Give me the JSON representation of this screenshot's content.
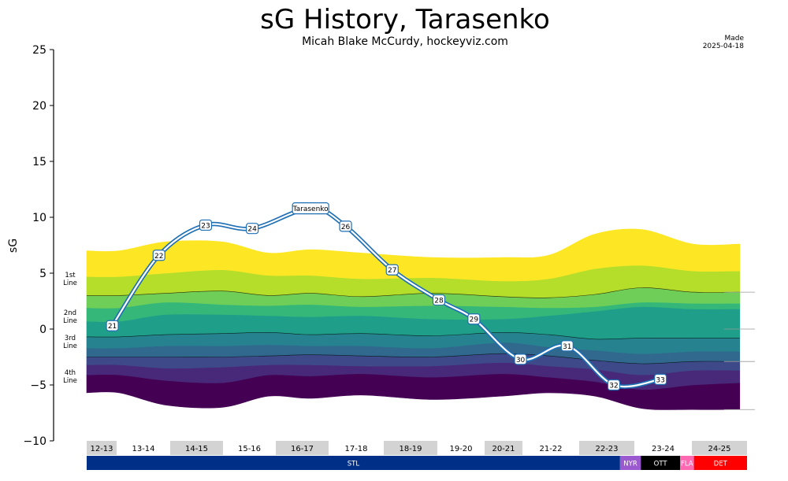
{
  "chart_data": {
    "type": "area",
    "title": "sG History, Tarasenko",
    "subtitle": "Micah Blake McCurdy, hockeyviz.com",
    "made_label": "Made",
    "made_date": "2025-04-18",
    "ylabel": "sG",
    "ylim": [
      -10,
      25
    ],
    "yticks": [
      -10,
      -5,
      0,
      5,
      10,
      15,
      20,
      25
    ],
    "line_labels": [
      "1st\nLine",
      "2nd\nLine",
      "3rd\nLine",
      "4th\nLine"
    ],
    "seasons": [
      "12-13",
      "13-14",
      "14-15",
      "15-16",
      "16-17",
      "17-18",
      "18-19",
      "19-20",
      "20-21",
      "21-22",
      "22-23",
      "23-24",
      "24-25"
    ],
    "teams": [
      {
        "name": "STL",
        "from": 0,
        "to": 11.55,
        "color": "#002F87"
      },
      {
        "name": "NYR",
        "from": 11.55,
        "to": 12.0,
        "color": "#9B59D0"
      },
      {
        "name": "OTT",
        "from": 12.0,
        "to": 12.85,
        "color": "#000000"
      },
      {
        "name": "FLA",
        "from": 12.85,
        "to": 13.15,
        "color": "#FF69B4"
      },
      {
        "name": "DET",
        "from": 13.15,
        "to": 14.3,
        "color": "#FF0000"
      }
    ],
    "band_colors": [
      "#440154",
      "#482878",
      "#3E4989",
      "#31688E",
      "#26828E",
      "#1F9E89",
      "#35B779",
      "#6ECE58",
      "#B5DE2B",
      "#FDE725"
    ],
    "band_x": [
      0,
      0.7,
      1.7,
      2.9,
      3.9,
      4.8,
      5.9,
      7.4,
      8.9,
      9.9,
      10.9,
      11.9,
      13.0,
      14.0
    ],
    "band_boundaries": [
      [
        -5.7,
        -5.7,
        -6.8,
        -7.0,
        -6.0,
        -6.2,
        -5.9,
        -6.3,
        -6.0,
        -5.7,
        -6.0,
        -7.1,
        -7.2,
        -7.2
      ],
      [
        -4.1,
        -4.1,
        -4.6,
        -4.8,
        -4.1,
        -4.2,
        -4.0,
        -4.3,
        -4.0,
        -4.3,
        -4.7,
        -5.4,
        -5.0,
        -4.8
      ],
      [
        -3.2,
        -3.2,
        -3.5,
        -3.4,
        -3.2,
        -3.2,
        -3.3,
        -3.3,
        -3.0,
        -3.3,
        -3.6,
        -4.1,
        -3.7,
        -3.7
      ],
      [
        -2.5,
        -2.5,
        -2.5,
        -2.5,
        -2.4,
        -2.3,
        -2.4,
        -2.5,
        -2.2,
        -2.4,
        -2.8,
        -3.1,
        -2.9,
        -2.9
      ],
      [
        -1.7,
        -1.7,
        -1.5,
        -1.5,
        -1.4,
        -1.5,
        -1.5,
        -1.7,
        -1.2,
        -1.6,
        -1.9,
        -2.2,
        -2.0,
        -2.0
      ],
      [
        -0.7,
        -0.7,
        -0.5,
        -0.4,
        -0.3,
        -0.5,
        -0.4,
        -0.6,
        -0.3,
        -0.5,
        -0.9,
        -0.8,
        -0.8,
        -0.8
      ],
      [
        0.7,
        0.7,
        1.3,
        1.3,
        1.2,
        1.1,
        1.2,
        0.9,
        0.9,
        1.2,
        1.6,
        2.0,
        1.8,
        1.8
      ],
      [
        1.9,
        1.9,
        2.4,
        2.2,
        2.1,
        2.2,
        2.0,
        2.1,
        2.0,
        1.9,
        2.0,
        2.4,
        2.3,
        2.3
      ],
      [
        3.0,
        3.0,
        3.2,
        3.4,
        3.0,
        3.2,
        2.9,
        3.2,
        2.9,
        2.8,
        3.1,
        3.7,
        3.3,
        3.3
      ],
      [
        4.7,
        4.7,
        5.0,
        5.3,
        4.8,
        4.8,
        4.5,
        4.6,
        4.3,
        4.5,
        5.4,
        5.7,
        5.2,
        5.2
      ],
      [
        7.0,
        7.0,
        7.8,
        7.8,
        6.8,
        7.1,
        6.8,
        6.4,
        6.4,
        6.6,
        8.5,
        8.9,
        7.6,
        7.6
      ]
    ],
    "thin_boundary_indices": [
      3,
      5,
      8
    ],
    "reference_levels": [
      -7.2,
      -2.9,
      0,
      3.3
    ],
    "player": {
      "name": "Tarasenko",
      "label_x": 4.8,
      "label_y": 10.8,
      "points": [
        {
          "age": "21",
          "x": 0.55,
          "y": 0.3
        },
        {
          "age": "22",
          "x": 1.55,
          "y": 6.6
        },
        {
          "age": "23",
          "x": 2.55,
          "y": 9.3
        },
        {
          "age": "24",
          "x": 3.55,
          "y": 9.0
        },
        {
          "x": 4.8,
          "y": 10.8
        },
        {
          "age": "26",
          "x": 5.55,
          "y": 9.2
        },
        {
          "age": "27",
          "x": 6.55,
          "y": 5.3
        },
        {
          "age": "28",
          "x": 7.55,
          "y": 2.6
        },
        {
          "age": "29",
          "x": 8.3,
          "y": 0.9
        },
        {
          "age": "30",
          "x": 9.3,
          "y": -2.7
        },
        {
          "age": "31",
          "x": 10.3,
          "y": -1.5
        },
        {
          "age": "32",
          "x": 11.3,
          "y": -5.0
        },
        {
          "age": "33",
          "x": 12.3,
          "y": -4.5
        }
      ]
    }
  }
}
